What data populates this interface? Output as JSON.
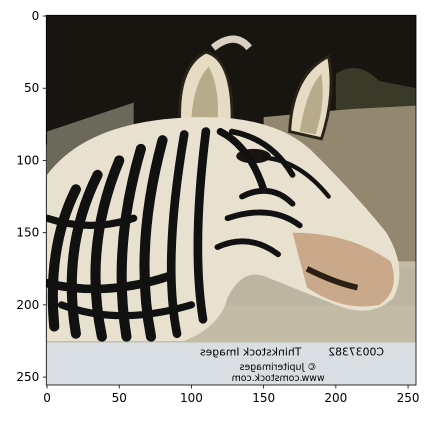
{
  "chart_data": {
    "type": "image",
    "xlim": [
      -0.5,
      255.5
    ],
    "ylim": [
      255.5,
      -0.5
    ],
    "xticks": [
      0,
      50,
      100,
      150,
      200,
      250
    ],
    "yticks": [
      0,
      50,
      100,
      150,
      200,
      250
    ],
    "image_text": [
      "Thinkstock Images",
      "C0037382",
      "© Jupiterimages",
      "www.comstock.com"
    ]
  }
}
